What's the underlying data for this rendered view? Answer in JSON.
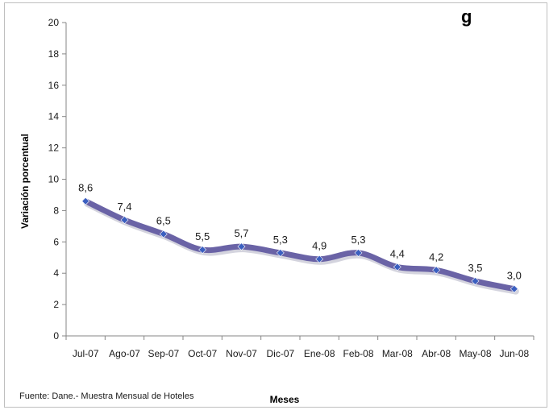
{
  "chart_data": {
    "type": "line",
    "title_fragment": "g",
    "xlabel": "Meses",
    "ylabel": "Variación porcentual",
    "ylim": [
      0,
      20
    ],
    "yticks": [
      0,
      2,
      4,
      6,
      8,
      10,
      12,
      14,
      16,
      18,
      20
    ],
    "grid": false,
    "categories": [
      "Jul-07",
      "Ago-07",
      "Sep-07",
      "Oct-07",
      "Nov-07",
      "Dic-07",
      "Ene-08",
      "Feb-08",
      "Mar-08",
      "Abr-08",
      "May-08",
      "Jun-08"
    ],
    "values": [
      8.6,
      7.4,
      6.5,
      5.5,
      5.7,
      5.3,
      4.9,
      5.3,
      4.4,
      4.2,
      3.5,
      3.0
    ],
    "data_labels": [
      "8,6",
      "7,4",
      "6,5",
      "5,5",
      "5,7",
      "5,3",
      "4,9",
      "5,3",
      "4,4",
      "4,2",
      "3,5",
      "3,0"
    ],
    "colors": {
      "line": "#6a63a6",
      "marker": "#3b5fc0"
    }
  },
  "source_note": "Fuente: Dane.- Muestra Mensual de Hoteles"
}
